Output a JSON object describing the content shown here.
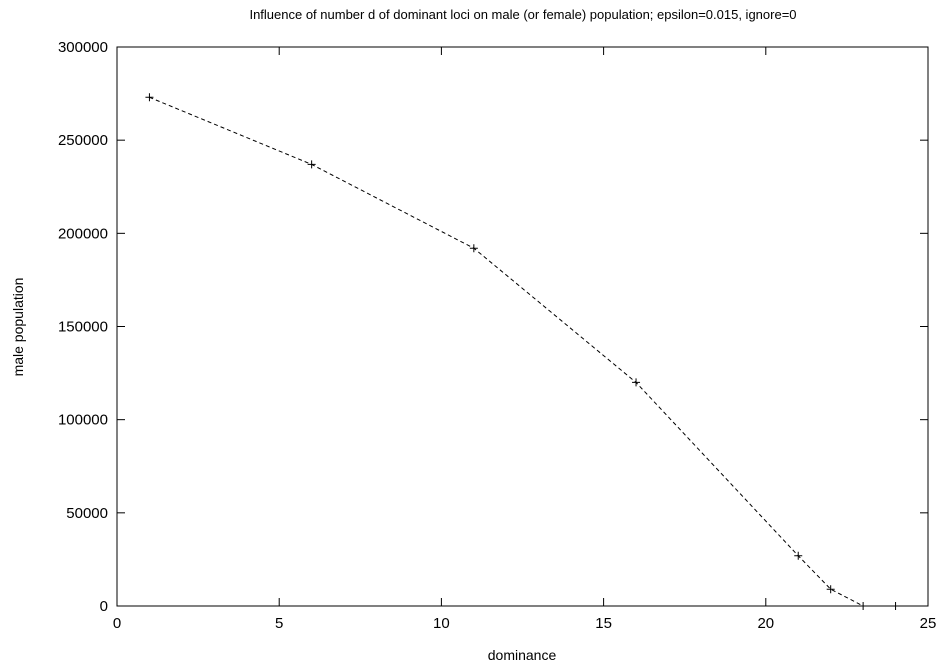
{
  "chart_data": {
    "type": "line",
    "title": "Influence of number d of dominant loci on male (or female) population; epsilon=0.015, ignore=0",
    "xlabel": "dominance",
    "ylabel": "male population",
    "xlim": [
      0,
      25
    ],
    "ylim": [
      0,
      300000
    ],
    "xticks": [
      0,
      5,
      10,
      15,
      20,
      25
    ],
    "yticks": [
      0,
      50000,
      100000,
      150000,
      200000,
      250000,
      300000
    ],
    "xtick_labels": [
      "0",
      "5",
      "10",
      "15",
      "20",
      "25"
    ],
    "ytick_labels": [
      "0",
      "50000",
      "100000",
      "150000",
      "200000",
      "250000",
      "300000"
    ],
    "grid": false,
    "legend": "none",
    "series": [
      {
        "color": "#000000",
        "line_style": "dashed",
        "marker": "plus",
        "x": [
          1,
          6,
          11,
          16,
          21,
          22,
          23,
          24
        ],
        "y": [
          273000,
          237000,
          192000,
          120000,
          27000,
          9000,
          0,
          0
        ]
      }
    ]
  }
}
